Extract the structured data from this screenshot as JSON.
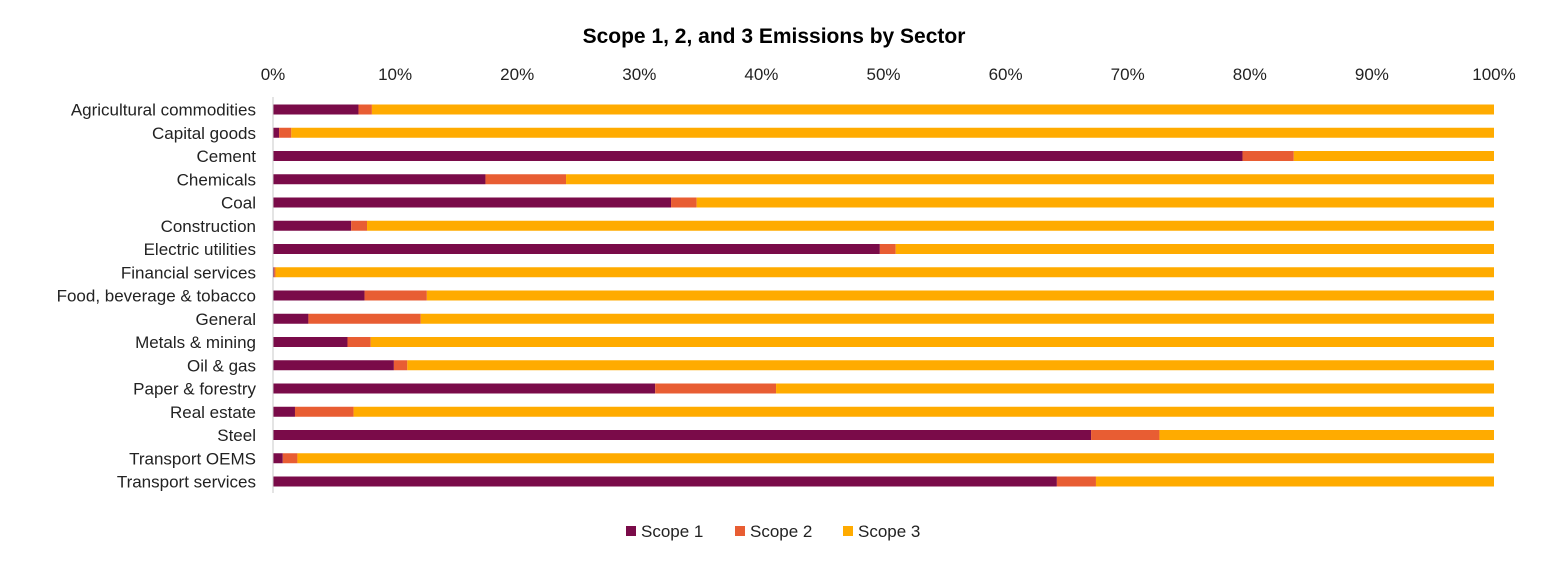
{
  "chart_data": {
    "type": "bar",
    "orientation": "horizontal",
    "stacked": true,
    "title": "Scope 1, 2, and 3 Emissions by Sector",
    "xlim": [
      0,
      100
    ],
    "x_ticks": [
      "0%",
      "10%",
      "20%",
      "30%",
      "40%",
      "50%",
      "60%",
      "70%",
      "80%",
      "90%",
      "100%"
    ],
    "grid": false,
    "legend_position": "bottom",
    "categories": [
      "Agricultural commodities",
      "Capital goods",
      "Cement",
      "Chemicals",
      "Coal",
      "Construction",
      "Electric utilities",
      "Financial services",
      "Food, beverage & tobacco",
      "General",
      "Metals & mining",
      "Oil & gas",
      "Paper & forestry",
      "Real estate",
      "Steel",
      "Transport OEMS",
      "Transport services"
    ],
    "series": [
      {
        "name": "Scope 1",
        "color": "#7a0b49",
        "values": [
          7.0,
          0.5,
          79.4,
          17.4,
          32.6,
          6.4,
          49.7,
          0.1,
          7.5,
          2.9,
          6.1,
          9.9,
          31.3,
          1.8,
          67.0,
          0.8,
          64.2
        ]
      },
      {
        "name": "Scope 2",
        "color": "#e85d33",
        "values": [
          1.1,
          1.0,
          4.2,
          6.6,
          2.1,
          1.3,
          1.3,
          0.1,
          5.1,
          9.2,
          1.9,
          1.1,
          9.9,
          4.8,
          5.6,
          1.2,
          3.2
        ]
      },
      {
        "name": "Scope 3",
        "color": "#ffab00",
        "values": [
          91.9,
          98.5,
          16.4,
          76.0,
          65.3,
          92.3,
          49.0,
          99.8,
          87.4,
          87.9,
          92.0,
          89.0,
          58.8,
          93.4,
          27.4,
          98.0,
          32.6
        ]
      }
    ]
  }
}
